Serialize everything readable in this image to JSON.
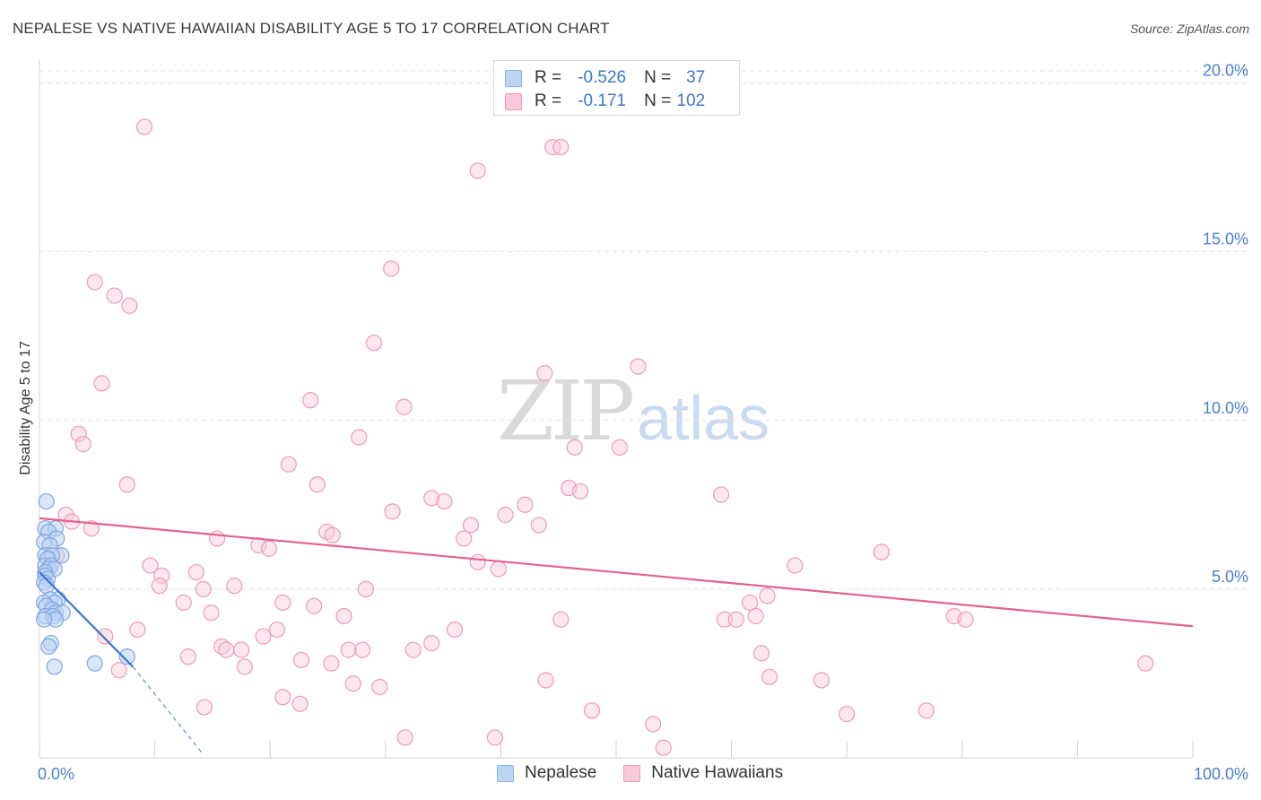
{
  "title": "NEPALESE VS NATIVE HAWAIIAN DISABILITY AGE 5 TO 17 CORRELATION CHART",
  "source": "Source: ZipAtlas.com",
  "watermark": {
    "zip": "ZIP",
    "atlas": "atlas"
  },
  "legend": {
    "r_label": "R =",
    "n_label": "N =",
    "rows": [
      {
        "r": "-0.526",
        "n": "37"
      },
      {
        "r": "-0.171",
        "n": "102"
      }
    ]
  },
  "bottom_legend": [
    "Nepalese",
    "Native Hawaiians"
  ],
  "colors": {
    "blue_fill": "#bcd4f4",
    "blue_stroke": "#7fa7e2",
    "blue_line": "#3a75d4",
    "pink_fill": "#f8c9d8",
    "pink_stroke": "#ec9bb7",
    "pink_line": "#e2648f",
    "grid": "#e3e3e3",
    "tick_label": "#4a7fd0"
  },
  "chart_data": {
    "type": "scatter",
    "title": "NEPALESE VS NATIVE HAWAIIAN DISABILITY AGE 5 TO 17 CORRELATION CHART",
    "xlabel": "",
    "ylabel": "Disability Age 5 to 17",
    "xlim": [
      0,
      100
    ],
    "ylim": [
      0,
      20.6
    ],
    "x_tick_labels": [
      "0.0%",
      "100.0%"
    ],
    "y_ticks": [
      5,
      10,
      15,
      20
    ],
    "y_tick_labels": [
      "5.0%",
      "10.0%",
      "15.0%",
      "20.0%"
    ],
    "series": [
      {
        "name": "Nepalese",
        "r": -0.526,
        "n": 37,
        "trend": {
          "x": [
            0,
            8.1
          ],
          "y": [
            5.5,
            2.7
          ]
        },
        "trend_dashed": {
          "x": [
            8.1,
            14.2
          ],
          "y": [
            2.7,
            0.1
          ]
        },
        "points": [
          [
            0.6,
            7.6
          ],
          [
            0.5,
            6.8
          ],
          [
            1.4,
            6.8
          ],
          [
            0.8,
            6.7
          ],
          [
            1.5,
            6.5
          ],
          [
            0.4,
            6.4
          ],
          [
            0.9,
            6.3
          ],
          [
            1.9,
            6.0
          ],
          [
            0.5,
            6.0
          ],
          [
            1.1,
            6.0
          ],
          [
            0.7,
            5.9
          ],
          [
            0.5,
            5.7
          ],
          [
            1.0,
            5.7
          ],
          [
            0.8,
            5.6
          ],
          [
            1.3,
            5.6
          ],
          [
            0.5,
            5.5
          ],
          [
            0.5,
            5.4
          ],
          [
            0.7,
            5.3
          ],
          [
            0.4,
            5.2
          ],
          [
            0.6,
            5.1
          ],
          [
            1.6,
            4.7
          ],
          [
            0.9,
            4.7
          ],
          [
            1.3,
            4.6
          ],
          [
            0.4,
            4.6
          ],
          [
            0.6,
            4.5
          ],
          [
            1.1,
            4.4
          ],
          [
            1.4,
            4.3
          ],
          [
            2.0,
            4.3
          ],
          [
            0.5,
            4.2
          ],
          [
            1.2,
            4.2
          ],
          [
            1.4,
            4.1
          ],
          [
            0.4,
            4.1
          ],
          [
            1.0,
            3.4
          ],
          [
            0.8,
            3.3
          ],
          [
            7.6,
            3.0
          ],
          [
            4.8,
            2.8
          ],
          [
            1.3,
            2.7
          ]
        ]
      },
      {
        "name": "Native Hawaiians",
        "r": -0.171,
        "n": 102,
        "trend": {
          "x": [
            0,
            100
          ],
          "y": [
            7.1,
            3.9
          ]
        },
        "points": [
          [
            9.1,
            18.7
          ],
          [
            44.5,
            18.1
          ],
          [
            45.2,
            18.1
          ],
          [
            38.0,
            17.4
          ],
          [
            30.5,
            14.5
          ],
          [
            4.8,
            14.1
          ],
          [
            6.5,
            13.7
          ],
          [
            7.8,
            13.4
          ],
          [
            29.0,
            12.3
          ],
          [
            51.9,
            11.6
          ],
          [
            43.8,
            11.4
          ],
          [
            5.4,
            11.1
          ],
          [
            23.5,
            10.6
          ],
          [
            31.6,
            10.4
          ],
          [
            3.4,
            9.6
          ],
          [
            27.7,
            9.5
          ],
          [
            3.8,
            9.3
          ],
          [
            46.4,
            9.2
          ],
          [
            50.3,
            9.2
          ],
          [
            21.6,
            8.7
          ],
          [
            7.6,
            8.1
          ],
          [
            24.1,
            8.1
          ],
          [
            45.9,
            8.0
          ],
          [
            46.9,
            7.9
          ],
          [
            59.1,
            7.8
          ],
          [
            34.0,
            7.7
          ],
          [
            35.1,
            7.6
          ],
          [
            42.1,
            7.5
          ],
          [
            30.6,
            7.3
          ],
          [
            40.4,
            7.2
          ],
          [
            2.3,
            7.2
          ],
          [
            2.8,
            7.0
          ],
          [
            37.4,
            6.9
          ],
          [
            43.3,
            6.9
          ],
          [
            4.5,
            6.8
          ],
          [
            24.9,
            6.7
          ],
          [
            25.4,
            6.6
          ],
          [
            36.8,
            6.5
          ],
          [
            15.4,
            6.5
          ],
          [
            19.0,
            6.3
          ],
          [
            19.9,
            6.2
          ],
          [
            73.0,
            6.1
          ],
          [
            1.0,
            6.0
          ],
          [
            1.5,
            6.0
          ],
          [
            0.8,
            5.9
          ],
          [
            38.0,
            5.8
          ],
          [
            9.6,
            5.7
          ],
          [
            65.5,
            5.7
          ],
          [
            39.8,
            5.6
          ],
          [
            10.6,
            5.4
          ],
          [
            13.6,
            5.5
          ],
          [
            16.9,
            5.1
          ],
          [
            10.4,
            5.1
          ],
          [
            14.2,
            5.0
          ],
          [
            28.3,
            5.0
          ],
          [
            63.1,
            4.8
          ],
          [
            12.5,
            4.6
          ],
          [
            21.1,
            4.6
          ],
          [
            61.6,
            4.6
          ],
          [
            23.8,
            4.5
          ],
          [
            14.9,
            4.3
          ],
          [
            26.4,
            4.2
          ],
          [
            62.1,
            4.2
          ],
          [
            79.3,
            4.2
          ],
          [
            80.3,
            4.1
          ],
          [
            45.2,
            4.1
          ],
          [
            59.4,
            4.1
          ],
          [
            60.4,
            4.1
          ],
          [
            8.5,
            3.8
          ],
          [
            20.6,
            3.8
          ],
          [
            36.0,
            3.8
          ],
          [
            5.7,
            3.6
          ],
          [
            19.4,
            3.6
          ],
          [
            34.0,
            3.4
          ],
          [
            15.8,
            3.3
          ],
          [
            16.2,
            3.2
          ],
          [
            26.8,
            3.2
          ],
          [
            17.5,
            3.2
          ],
          [
            32.4,
            3.2
          ],
          [
            28.0,
            3.2
          ],
          [
            12.9,
            3.0
          ],
          [
            62.6,
            3.1
          ],
          [
            22.7,
            2.9
          ],
          [
            25.3,
            2.8
          ],
          [
            95.9,
            2.8
          ],
          [
            17.8,
            2.7
          ],
          [
            6.9,
            2.6
          ],
          [
            43.9,
            2.3
          ],
          [
            63.3,
            2.4
          ],
          [
            67.8,
            2.3
          ],
          [
            27.2,
            2.2
          ],
          [
            29.5,
            2.1
          ],
          [
            21.1,
            1.8
          ],
          [
            22.6,
            1.6
          ],
          [
            14.3,
            1.5
          ],
          [
            47.9,
            1.4
          ],
          [
            76.9,
            1.4
          ],
          [
            70.0,
            1.3
          ],
          [
            53.2,
            1.0
          ],
          [
            31.7,
            0.6
          ],
          [
            39.5,
            0.6
          ],
          [
            54.1,
            0.3
          ]
        ]
      }
    ]
  }
}
